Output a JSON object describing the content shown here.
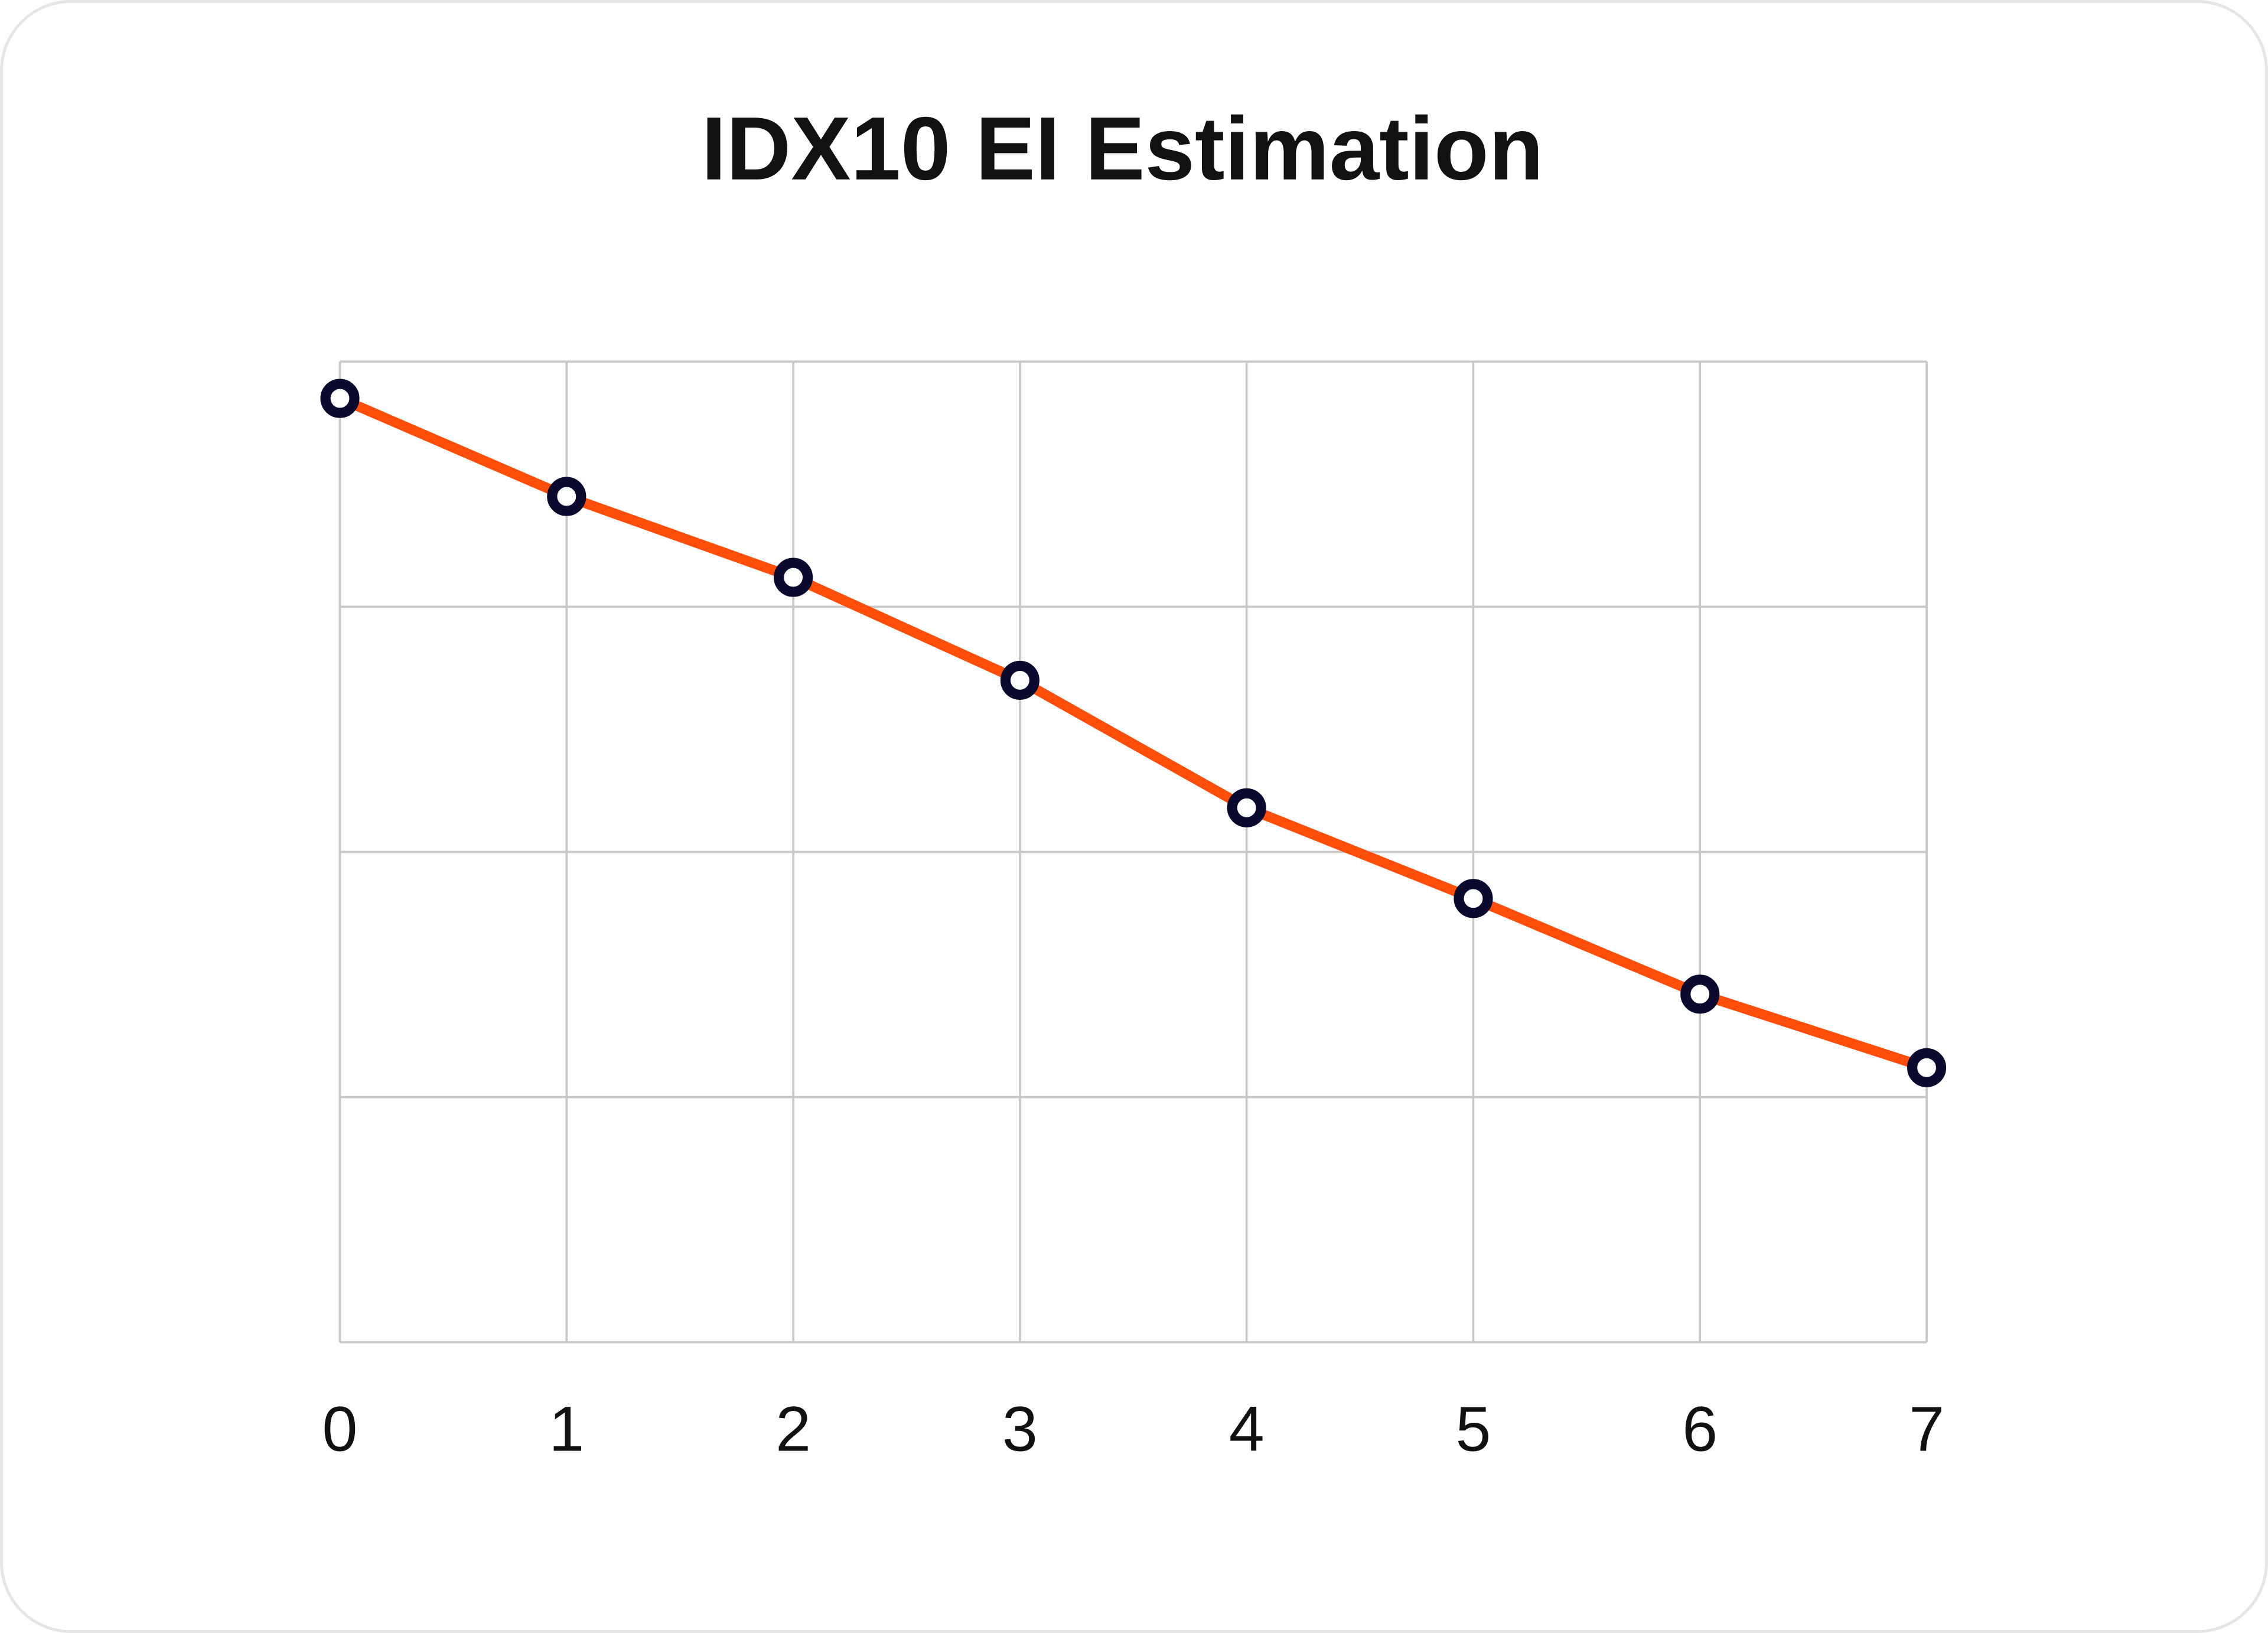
{
  "chart_data": {
    "type": "line",
    "title": "IDX10 EI Estimation",
    "xlabel": "",
    "ylabel": "",
    "x": [
      0,
      1,
      2,
      3,
      4,
      5,
      6,
      7
    ],
    "x_tick_labels": [
      "0",
      "1",
      "2",
      "3",
      "4",
      "5",
      "6",
      "7"
    ],
    "series": [
      {
        "values": [
          3.85,
          3.45,
          3.12,
          2.7,
          2.18,
          1.81,
          1.42,
          1.12
        ]
      }
    ],
    "xlim": [
      0,
      7
    ],
    "ylim": [
      0,
      4
    ],
    "y_tick_labels_shown": false,
    "grid": true,
    "legend": "none",
    "colors": {
      "line": "#ff4d0a",
      "marker": "#0a0a2e",
      "marker_fill": "#ffffff",
      "grid": "#c8c8c8",
      "card_border": "#e6e6e6"
    }
  }
}
